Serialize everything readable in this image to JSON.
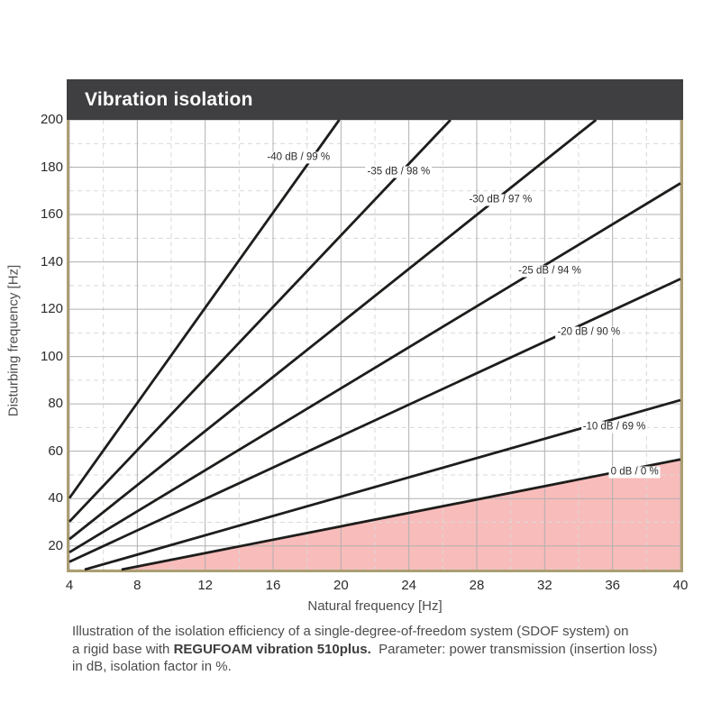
{
  "chart_data": {
    "type": "line",
    "title": "Vibration isolation",
    "xlabel": "Natural frequency [Hz]",
    "ylabel": "Disturbing frequency [Hz]",
    "xlim": [
      4,
      40
    ],
    "ylim": [
      10,
      200
    ],
    "xticks": [
      4,
      8,
      12,
      16,
      20,
      24,
      28,
      32,
      36,
      40
    ],
    "yticks": [
      20,
      40,
      60,
      80,
      100,
      120,
      140,
      160,
      180,
      200
    ],
    "x_minor_step": 2,
    "y_minor_step": 10,
    "grid": true,
    "legend_position": "inline-labels",
    "series": [
      {
        "label": "-40 dB / 99 %",
        "insertion_loss_db": -40,
        "isolation_pct": 99,
        "freq_ratio": 10.05,
        "label_at": {
          "fn": 17.5,
          "f": 184
        }
      },
      {
        "label": "-35 dB / 98 %",
        "insertion_loss_db": -35,
        "isolation_pct": 98,
        "freq_ratio": 7.56,
        "label_at": {
          "fn": 23.4,
          "f": 178
        }
      },
      {
        "label": "-30 dB / 97 %",
        "insertion_loss_db": -30,
        "isolation_pct": 97,
        "freq_ratio": 5.71,
        "label_at": {
          "fn": 29.4,
          "f": 166
        }
      },
      {
        "label": "-25 dB / 94 %",
        "insertion_loss_db": -25,
        "isolation_pct": 94,
        "freq_ratio": 4.33,
        "label_at": {
          "fn": 32.3,
          "f": 136
        }
      },
      {
        "label": "-20 dB / 90 %",
        "insertion_loss_db": -20,
        "isolation_pct": 90,
        "freq_ratio": 3.32,
        "label_at": {
          "fn": 34.6,
          "f": 110
        }
      },
      {
        "label": "-10 dB / 69 %",
        "insertion_loss_db": -10,
        "isolation_pct": 69,
        "freq_ratio": 2.04,
        "label_at": {
          "fn": 36.1,
          "f": 70
        }
      },
      {
        "label": "0 dB / 0 %",
        "insertion_loss_db": 0,
        "isolation_pct": 0,
        "freq_ratio": 1.414,
        "label_at": {
          "fn": 37.3,
          "f": 51
        }
      }
    ],
    "shaded_region": {
      "bounded_by": "0 dB / 0 %",
      "note": "amplification region below the 0 dB line"
    }
  },
  "caption": {
    "line1": "Illustration of the isolation efficiency of a single-degree-of-freedom system (SDOF system) on",
    "line2_pre": "a rigid base with ",
    "line2_bold": "REGUFOAM vibration 510plus.",
    "line2_post": "  Parameter: power transmission (insertion loss)",
    "line3": "in dB, isolation factor in %."
  },
  "colors": {
    "title_bar": "#3f3e40",
    "title_text": "#ffffff",
    "frame": "#ac9e72",
    "grid_major": "#b0b0b0",
    "grid_minor": "#d9d9d9",
    "series_line": "#1d1d1b",
    "shade": "#f8bcba",
    "axis_text": "#4d4d4d",
    "tick_text": "#2b2b2b"
  }
}
